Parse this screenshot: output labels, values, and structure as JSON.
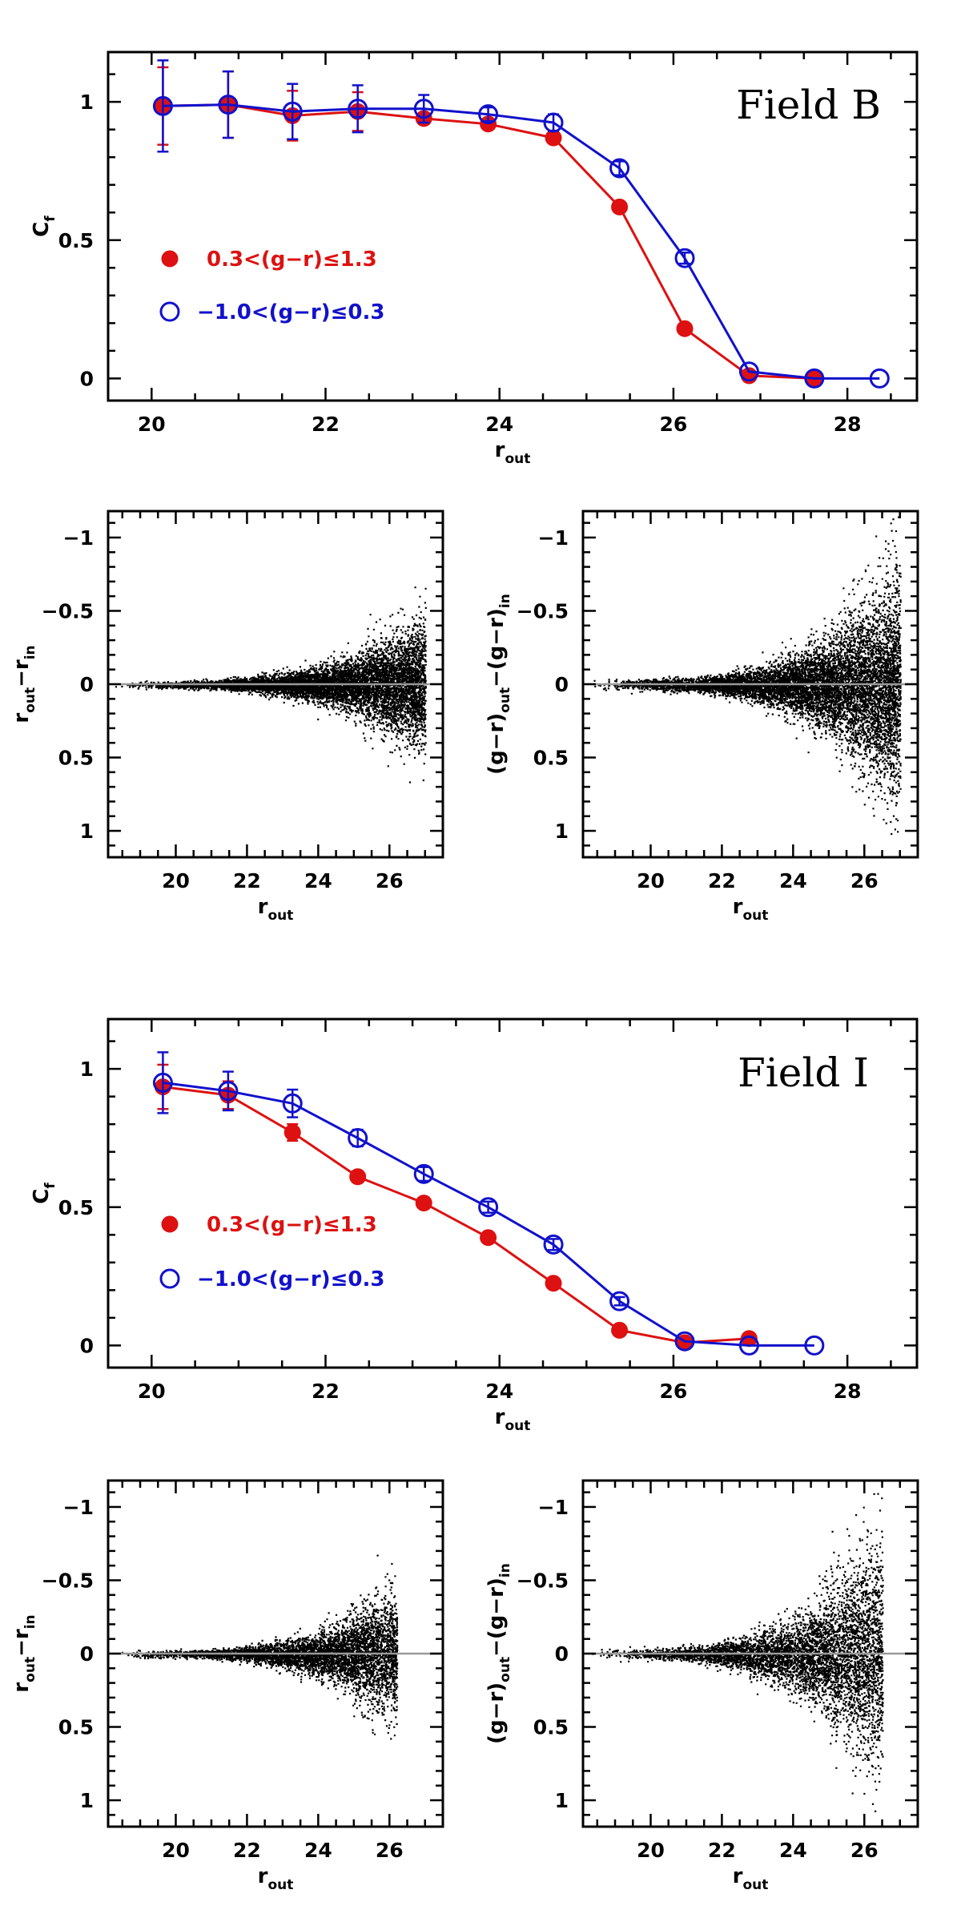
{
  "colors": {
    "red": "#dd1111",
    "blue": "#1111cc",
    "zero_line": "#999999",
    "axes": "#000000"
  },
  "chart_data": [
    {
      "id": "B-completeness",
      "type": "line",
      "title": "Field  B",
      "xlabel": "r",
      "xlabel_sub": "out",
      "ylabel": "C",
      "ylabel_sub": "f",
      "xlim": [
        19.5,
        28.8
      ],
      "ylim": [
        -0.08,
        1.18
      ],
      "xticks": [
        20,
        22,
        24,
        26,
        28
      ],
      "yticks": [
        0,
        0.5,
        1
      ],
      "ytick_labels": [
        "0",
        "0.5",
        "1"
      ],
      "legend": [
        "0.3<(g−r)≤1.3",
        "−1.0<(g−r)≤0.3"
      ],
      "series": [
        {
          "name": "0.3<(g−r)≤1.3",
          "marker": "filled",
          "color": "red",
          "x": [
            20.13,
            20.88,
            21.62,
            22.37,
            23.13,
            23.87,
            24.62,
            25.38,
            26.13,
            26.87,
            27.62
          ],
          "y": [
            0.985,
            0.99,
            0.95,
            0.965,
            0.94,
            0.92,
            0.87,
            0.62,
            0.18,
            0.01,
            0.0
          ],
          "err": [
            0.14,
            0.12,
            0.09,
            0.07,
            0.02,
            0.015,
            0.015,
            0.01,
            0.0,
            0.0,
            0.0
          ]
        },
        {
          "name": "−1.0<(g−r)≤0.3",
          "marker": "open",
          "color": "blue",
          "x": [
            20.13,
            20.88,
            21.62,
            22.37,
            23.13,
            23.87,
            24.62,
            25.38,
            26.13,
            26.87,
            27.62,
            28.37
          ],
          "y": [
            0.985,
            0.99,
            0.965,
            0.975,
            0.975,
            0.955,
            0.925,
            0.76,
            0.435,
            0.025,
            0.0,
            0.0
          ],
          "err": [
            0.165,
            0.12,
            0.1,
            0.085,
            0.05,
            0.025,
            0.03,
            0.025,
            0.02,
            0.0,
            0.0,
            0.0
          ]
        }
      ]
    },
    {
      "id": "B-dr",
      "type": "scatter",
      "xlabel": "r",
      "xlabel_sub": "out",
      "ylabel": "r−r",
      "ylabel_subs": [
        "out",
        "in"
      ],
      "xlim": [
        18.1,
        27.5
      ],
      "ylim": [
        1.18,
        -1.18
      ],
      "xticks": [
        20,
        22,
        24,
        26
      ],
      "yticks": [
        -1,
        -0.5,
        0,
        0.5,
        1
      ],
      "ytick_labels": [
        "−1",
        "−0.5",
        "0",
        "0.5",
        "1"
      ],
      "scatter_model": {
        "n_points": 7500,
        "x_min": 18.2,
        "x_max": 27.0,
        "x_peak": 25.2,
        "sigma_base": 0.012,
        "sigma_growth": 0.09,
        "cap": 0.75,
        "seed": 11
      }
    },
    {
      "id": "B-dgr",
      "type": "scatter",
      "xlabel": "r",
      "xlabel_sub": "out",
      "ylabel": "(g−r)−(g−r)",
      "ylabel_subs": [
        "out",
        "in"
      ],
      "xlim": [
        18.1,
        27.5
      ],
      "ylim": [
        1.18,
        -1.18
      ],
      "xticks": [
        20,
        22,
        24,
        26
      ],
      "yticks": [
        -1,
        -0.5,
        0,
        0.5,
        1
      ],
      "ytick_labels": [
        "−1",
        "−0.5",
        "0",
        "0.5",
        "1"
      ],
      "scatter_model": {
        "n_points": 8500,
        "x_min": 18.2,
        "x_max": 27.0,
        "x_peak": 25.3,
        "sigma_base": 0.018,
        "sigma_growth": 0.16,
        "cap": 1.15,
        "seed": 23
      }
    },
    {
      "id": "I-completeness",
      "type": "line",
      "title": "Field  I",
      "xlabel": "r",
      "xlabel_sub": "out",
      "ylabel": "C",
      "ylabel_sub": "f",
      "xlim": [
        19.5,
        28.8
      ],
      "ylim": [
        -0.08,
        1.18
      ],
      "xticks": [
        20,
        22,
        24,
        26,
        28
      ],
      "yticks": [
        0,
        0.5,
        1
      ],
      "ytick_labels": [
        "0",
        "0.5",
        "1"
      ],
      "legend": [
        "0.3<(g−r)≤1.3",
        "−1.0<(g−r)≤0.3"
      ],
      "series": [
        {
          "name": "0.3<(g−r)≤1.3",
          "marker": "filled",
          "color": "red",
          "x": [
            20.13,
            20.88,
            21.62,
            22.37,
            23.13,
            23.87,
            24.62,
            25.38,
            26.13,
            26.87
          ],
          "y": [
            0.935,
            0.905,
            0.77,
            0.61,
            0.515,
            0.39,
            0.225,
            0.055,
            0.01,
            0.025
          ],
          "err": [
            0.08,
            0.05,
            0.03,
            0.02,
            0.01,
            0.01,
            0.01,
            0.0,
            0.0,
            0.0
          ]
        },
        {
          "name": "−1.0<(g−r)≤0.3",
          "marker": "open",
          "color": "blue",
          "x": [
            20.13,
            20.88,
            21.62,
            22.37,
            23.13,
            23.87,
            24.62,
            25.38,
            26.13,
            26.87,
            27.62
          ],
          "y": [
            0.95,
            0.92,
            0.875,
            0.75,
            0.62,
            0.5,
            0.365,
            0.16,
            0.015,
            0.0,
            0.0
          ],
          "err": [
            0.11,
            0.07,
            0.05,
            0.03,
            0.025,
            0.02,
            0.02,
            0.015,
            0.0,
            0.0,
            0.0
          ]
        }
      ]
    },
    {
      "id": "I-dr",
      "type": "scatter",
      "xlabel": "r",
      "xlabel_sub": "out",
      "ylabel": "r−r",
      "ylabel_subs": [
        "out",
        "in"
      ],
      "xlim": [
        18.1,
        27.5
      ],
      "ylim": [
        1.18,
        -1.18
      ],
      "xticks": [
        20,
        22,
        24,
        26
      ],
      "yticks": [
        -1,
        -0.5,
        0,
        0.5,
        1
      ],
      "ytick_labels": [
        "−1",
        "−0.5",
        "0",
        "0.5",
        "1"
      ],
      "scatter_model": {
        "n_points": 5000,
        "x_min": 18.2,
        "x_max": 26.2,
        "x_peak": 24.8,
        "sigma_base": 0.012,
        "sigma_growth": 0.1,
        "cap": 0.75,
        "seed": 37
      }
    },
    {
      "id": "I-dgr",
      "type": "scatter",
      "xlabel": "r",
      "xlabel_sub": "out",
      "ylabel": "(g−r)−(g−r)",
      "ylabel_subs": [
        "out",
        "in"
      ],
      "xlim": [
        18.1,
        27.5
      ],
      "ylim": [
        1.18,
        -1.18
      ],
      "xticks": [
        20,
        22,
        24,
        26
      ],
      "yticks": [
        -1,
        -0.5,
        0,
        0.5,
        1
      ],
      "ytick_labels": [
        "−1",
        "−0.5",
        "0",
        "0.5",
        "1"
      ],
      "scatter_model": {
        "n_points": 5500,
        "x_min": 18.2,
        "x_max": 26.5,
        "x_peak": 24.9,
        "sigma_base": 0.018,
        "sigma_growth": 0.17,
        "cap": 1.1,
        "seed": 51
      }
    }
  ]
}
